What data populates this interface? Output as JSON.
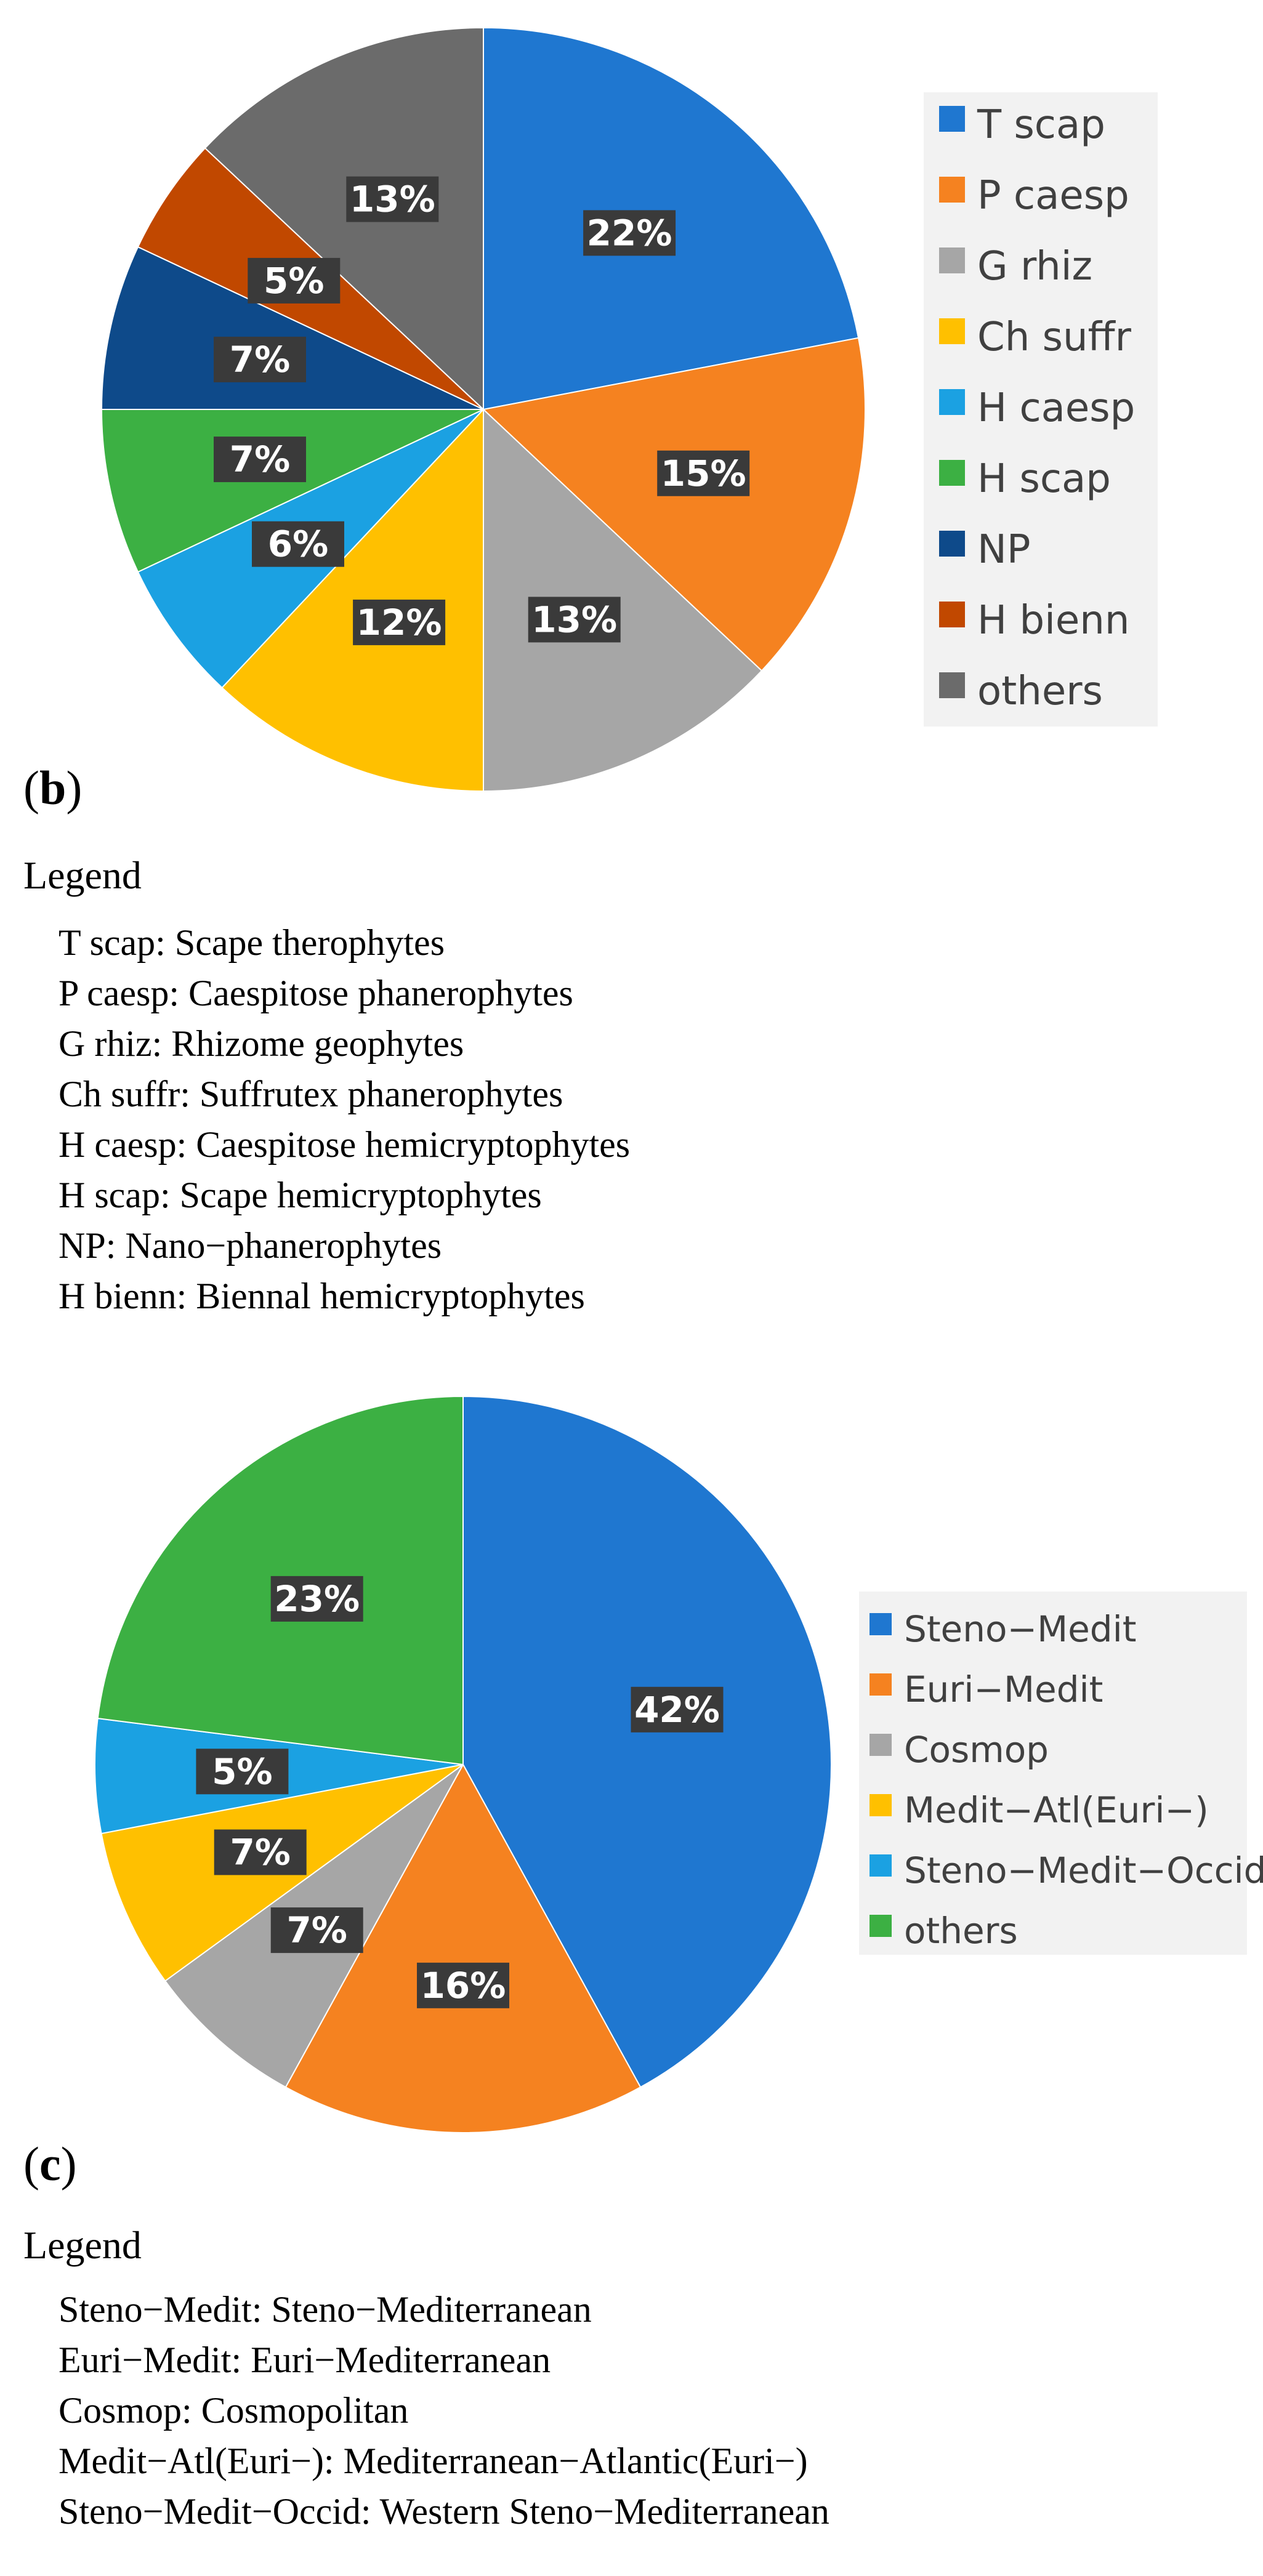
{
  "chart_data": [
    {
      "type": "pie",
      "title": "",
      "categories": [
        "T scap",
        "P caesp",
        "G rhiz",
        "Ch suffr",
        "H caesp",
        "H scap",
        "NP",
        "H bienn",
        "others"
      ],
      "values": [
        22,
        15,
        13,
        12,
        6,
        7,
        7,
        5,
        13
      ],
      "labels": [
        "22%",
        "15%",
        "13%",
        "12%",
        "6%",
        "7%",
        "7%",
        "5%",
        "13%"
      ],
      "colors": [
        "#1f77d0",
        "#f58220",
        "#a6a6a6",
        "#ffc000",
        "#1ba1e2",
        "#3cb043",
        "#0e4a8a",
        "#c14800",
        "#6b6b6b"
      ],
      "legend_position": "right"
    },
    {
      "type": "pie",
      "title": "",
      "categories": [
        "Steno−Medit",
        "Euri−Medit",
        "Cosmop",
        "Medit−Atl(Euri−)",
        "Steno−Medit−Occid",
        "others"
      ],
      "values": [
        42,
        16,
        7,
        7,
        5,
        23
      ],
      "labels": [
        "42%",
        "16%",
        "7%",
        "7%",
        "5%",
        "23%"
      ],
      "colors": [
        "#1f77d0",
        "#f58220",
        "#a6a6a6",
        "#ffc000",
        "#1ba1e2",
        "#3cb043"
      ],
      "legend_position": "right"
    }
  ],
  "panel_b": {
    "label": "b",
    "legend_title": "Legend",
    "definitions": [
      "T scap: Scape therophytes",
      "P caesp: Caespitose phanerophytes",
      "G rhiz: Rhizome geophytes",
      "Ch suffr: Suffrutex phanerophytes",
      "H caesp: Caespitose hemicryptophytes",
      "H scap: Scape hemicryptophytes",
      "NP: Nano−phanerophytes",
      "H bienn: Biennal hemicryptophytes"
    ]
  },
  "panel_c": {
    "label": "c",
    "legend_title": "Legend",
    "definitions": [
      "Steno−Medit: Steno−Mediterranean",
      "Euri−Medit: Euri−Mediterranean",
      "Cosmop: Cosmopolitan",
      "Medit−Atl(Euri−): Mediterranean−Atlantic(Euri−)",
      "Steno−Medit−Occid: Western Steno−Mediterranean"
    ]
  }
}
